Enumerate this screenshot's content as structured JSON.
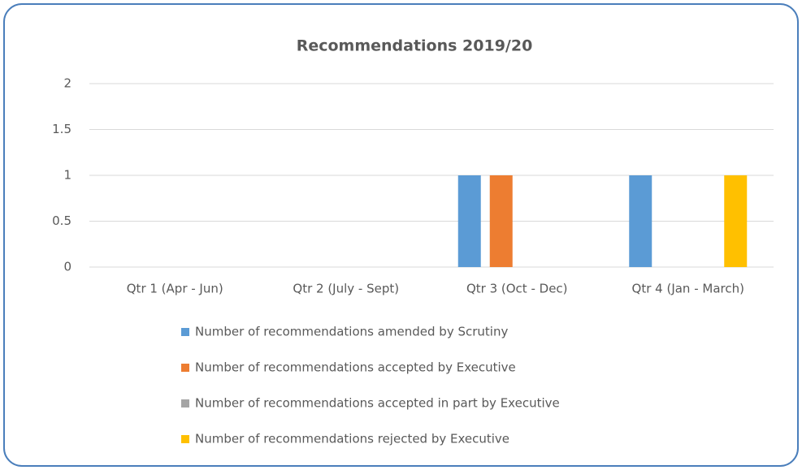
{
  "chart_data": {
    "type": "bar",
    "title": "Recommendations 2019/20",
    "categories": [
      "Qtr 1 (Apr - Jun)",
      "Qtr 2 (July - Sept)",
      "Qtr 3 (Oct - Dec)",
      "Qtr 4 (Jan - March)"
    ],
    "series": [
      {
        "name": "Number of recommendations amended by Scrutiny",
        "color": "#5b9bd5",
        "values": [
          0,
          0,
          1,
          1
        ]
      },
      {
        "name": "Number of recommendations accepted by Executive",
        "color": "#ed7d31",
        "values": [
          0,
          0,
          1,
          0
        ]
      },
      {
        "name": "Number of recommendations accepted in part by Executive",
        "color": "#a5a5a5",
        "values": [
          0,
          0,
          0,
          0
        ]
      },
      {
        "name": "Number of recommendations rejected by Executive",
        "color": "#ffc000",
        "values": [
          0,
          0,
          0,
          1
        ]
      }
    ],
    "ylim": [
      0,
      2
    ],
    "yticks": [
      0,
      0.5,
      1,
      1.5,
      2
    ],
    "grid": true,
    "legend": "bottom"
  }
}
